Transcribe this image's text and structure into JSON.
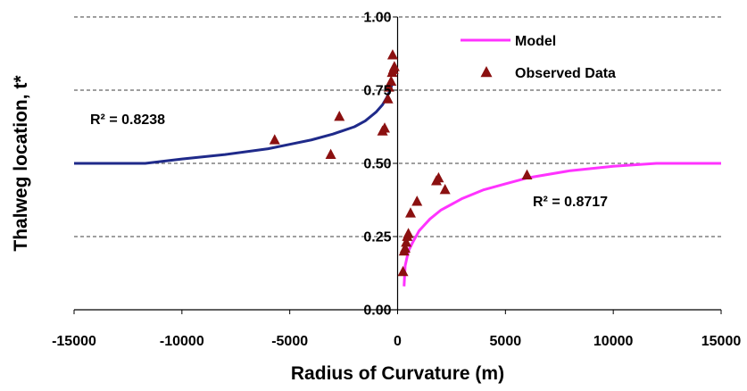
{
  "chart_data": {
    "type": "scatter",
    "xlabel": "Radius of Curvature (m)",
    "ylabel": "Thalweg location, t*",
    "xlim": [
      -15000,
      15000
    ],
    "ylim": [
      0,
      1
    ],
    "x_ticks": [
      -15000,
      -10000,
      -5000,
      0,
      5000,
      10000,
      15000
    ],
    "x_tick_labels": [
      "-15000",
      "-10000",
      "-5000",
      "0",
      "5000",
      "10000",
      "15000"
    ],
    "y_ticks": [
      0,
      0.25,
      0.5,
      0.75,
      1
    ],
    "y_tick_labels": [
      "0.00",
      "0.25",
      "0.50",
      "0.75",
      "1.00"
    ],
    "grid": "horizontal dashed",
    "legend_position": "top-right",
    "legend": {
      "model_label": "Model",
      "observed_label": "Observed Data"
    },
    "annotations": {
      "r2_left": "R² = 0.8238",
      "r2_right": "R² = 0.8717"
    },
    "colors": {
      "model_negative": "#1f2a8a",
      "model_positive": "#ff33ff",
      "observed": "#8b1010",
      "grid": "#000000"
    },
    "series": [
      {
        "name": "Model",
        "kind": "line",
        "segment": "negative",
        "x": [
          -15000,
          -13000,
          -11700,
          -10000,
          -8000,
          -6000,
          -5000,
          -4000,
          -3000,
          -2000,
          -1500,
          -1000,
          -700,
          -500,
          -350,
          -250
        ],
        "y": [
          0.5,
          0.5,
          0.5,
          0.515,
          0.53,
          0.55,
          0.565,
          0.58,
          0.6,
          0.625,
          0.645,
          0.675,
          0.7,
          0.725,
          0.75,
          0.77
        ]
      },
      {
        "name": "Model",
        "kind": "line",
        "segment": "positive",
        "x": [
          300,
          350,
          500,
          700,
          1000,
          1500,
          2000,
          3000,
          4000,
          5000,
          6000,
          8000,
          10000,
          12000,
          15000
        ],
        "y": [
          0.08,
          0.15,
          0.2,
          0.23,
          0.27,
          0.31,
          0.34,
          0.38,
          0.41,
          0.43,
          0.45,
          0.475,
          0.49,
          0.5,
          0.5
        ]
      },
      {
        "name": "Observed Data",
        "kind": "scatter",
        "x": [
          -5700,
          -3100,
          -2700,
          -700,
          -600,
          -450,
          -400,
          -300,
          -250,
          -230,
          -200,
          -150,
          250,
          300,
          350,
          400,
          450,
          500,
          600,
          900,
          1800,
          1900,
          2200,
          6000
        ],
        "y": [
          0.58,
          0.53,
          0.66,
          0.61,
          0.62,
          0.72,
          0.76,
          0.78,
          0.81,
          0.87,
          0.82,
          0.83,
          0.13,
          0.2,
          0.21,
          0.23,
          0.25,
          0.26,
          0.33,
          0.37,
          0.44,
          0.45,
          0.41,
          0.46
        ]
      }
    ]
  }
}
